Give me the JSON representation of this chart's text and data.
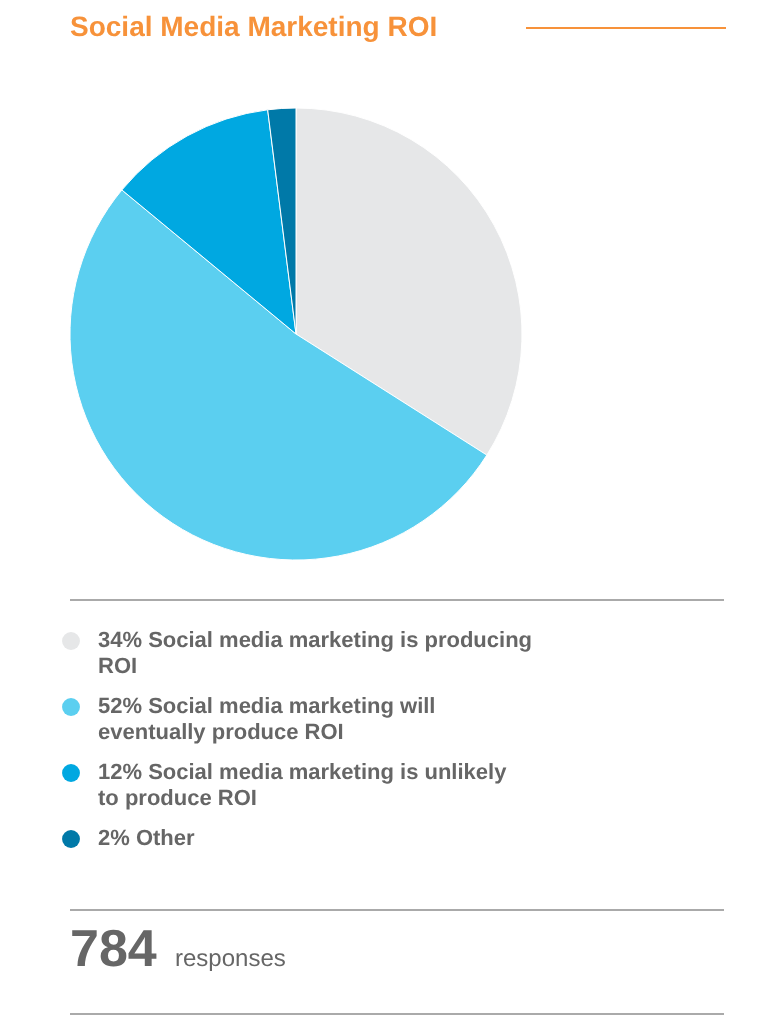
{
  "chart_data": {
    "type": "pie",
    "title": "Social Media Marketing ROI",
    "categories": [
      "Social media marketing is producing ROI",
      "Social media marketing will eventually produce ROI",
      "Social media marketing is unlikely to produce ROI",
      "Other"
    ],
    "values": [
      34,
      52,
      12,
      2
    ],
    "value_labels": [
      "34%",
      "52%",
      "12%",
      "2%"
    ],
    "colors": [
      "#e6e7e8",
      "#5bcff0",
      "#00a8e1",
      "#0079a8"
    ],
    "legend": "bottom",
    "annotations": [
      "784 responses"
    ]
  }
}
